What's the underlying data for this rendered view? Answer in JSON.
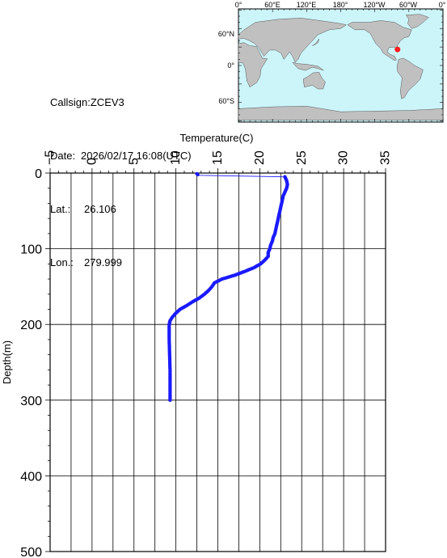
{
  "station": {
    "callsign_label": "Callsign:",
    "callsign": "ZCEV3",
    "date_label": "Date:",
    "date": "2026/02/17 16:08(UTC)",
    "lat_label": "Lat.:",
    "lat": "26.106",
    "lon_label": "Lon.:",
    "lon": "279.999"
  },
  "map": {
    "top_labels": [
      "0°",
      "60°E",
      "120°E",
      "180°",
      "120°W",
      "60°W",
      "0°"
    ],
    "left_labels": [
      "60°N",
      "0°",
      "60°S"
    ],
    "ocean_color": "#ccf5fa",
    "land_color": "#c0c0c0",
    "marker_color": "#ff2020",
    "marker": {
      "lat": 26.106,
      "lon": 279.999
    }
  },
  "chart_data": {
    "type": "line",
    "xlabel": "Temperature(C)",
    "ylabel": "Depth(m)",
    "xlim": [
      -5,
      35
    ],
    "ylim": [
      0,
      500
    ],
    "y_inverted": true,
    "x_axis_position": "top",
    "x_ticks": [
      -5,
      0,
      5,
      10,
      15,
      20,
      25,
      30,
      35
    ],
    "x_tick_labels": [
      "−5",
      "0",
      "5",
      "10",
      "15",
      "20",
      "25",
      "30",
      "35"
    ],
    "y_ticks": [
      0,
      100,
      200,
      300,
      400,
      500
    ],
    "y_tick_labels": [
      "0",
      "100",
      "200",
      "300",
      "400",
      "500"
    ],
    "grid": true,
    "series_color": "#1a1aff",
    "series": [
      {
        "x": [
          12.5,
          12.7,
          23.0,
          23.2,
          23.3,
          23.2,
          23.0,
          22.8,
          22.6,
          22.4,
          22.2,
          22.0,
          21.8,
          21.6,
          21.5,
          21.3,
          21.2,
          21.0,
          21.0,
          20.6,
          20.1,
          19.3,
          18.2,
          17.0,
          15.5,
          14.6,
          14.3,
          13.9,
          13.4,
          12.8,
          12.0,
          11.3,
          10.5,
          10.0,
          9.6,
          9.3,
          9.2,
          9.2,
          9.25,
          9.3,
          9.3,
          9.3
        ],
        "y": [
          1,
          3,
          5,
          10,
          15,
          20,
          25,
          30,
          40,
          50,
          60,
          70,
          80,
          85,
          90,
          95,
          100,
          105,
          110,
          115,
          120,
          125,
          130,
          135,
          140,
          145,
          150,
          155,
          160,
          165,
          170,
          175,
          180,
          185,
          190,
          195,
          200,
          220,
          240,
          260,
          280,
          300
        ]
      }
    ]
  }
}
